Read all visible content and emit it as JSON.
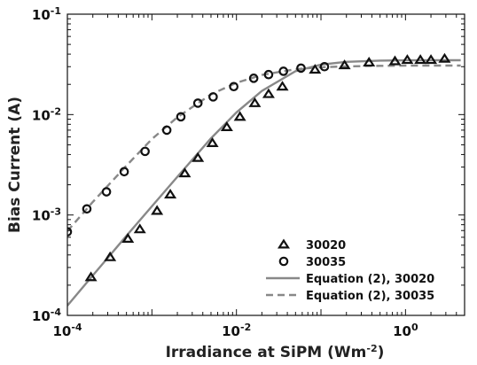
{
  "chart_data": {
    "type": "scatter",
    "title": "",
    "xlabel": "Irradiance at SiPM (Wm",
    "xlabel_superscript": "-2",
    "xlabel_close": ")",
    "ylabel": "Bias Current (A)",
    "x_scale": "log",
    "y_scale": "log",
    "xlim": [
      0.0001,
      5
    ],
    "ylim": [
      0.0001,
      0.1
    ],
    "x_ticks": [
      {
        "value": 0.0001,
        "base": "10",
        "exp": "-4"
      },
      {
        "value": 0.01,
        "base": "10",
        "exp": "-2"
      },
      {
        "value": 1,
        "base": "10",
        "exp": "0"
      }
    ],
    "y_ticks": [
      {
        "value": 0.0001,
        "base": "10",
        "exp": "-4"
      },
      {
        "value": 0.001,
        "base": "10",
        "exp": "-3"
      },
      {
        "value": 0.01,
        "base": "10",
        "exp": "-2"
      },
      {
        "value": 0.1,
        "base": "10",
        "exp": "-1"
      }
    ],
    "grid": false,
    "legend_position": "bottom-right",
    "colors": {
      "markers": "#111111",
      "fit_line": "#888888",
      "axes": "#111111"
    },
    "series": [
      {
        "name": "30020",
        "kind": "markers",
        "marker": "triangle",
        "x": [
          0.00019,
          0.00032,
          0.00052,
          0.00072,
          0.00115,
          0.00165,
          0.00245,
          0.0035,
          0.0052,
          0.0077,
          0.011,
          0.0165,
          0.024,
          0.035,
          0.085,
          0.19,
          0.37,
          0.75,
          1.05,
          1.5,
          2.0,
          2.9
        ],
        "y": [
          0.00024,
          0.00038,
          0.00058,
          0.00072,
          0.0011,
          0.0016,
          0.0026,
          0.0037,
          0.0052,
          0.0075,
          0.0095,
          0.013,
          0.016,
          0.019,
          0.028,
          0.031,
          0.033,
          0.034,
          0.035,
          0.035,
          0.035,
          0.036
        ]
      },
      {
        "name": "30035",
        "kind": "markers",
        "marker": "circle",
        "x": [
          0.0001,
          0.00017,
          0.00029,
          0.00047,
          0.00083,
          0.0015,
          0.0022,
          0.0035,
          0.0053,
          0.0093,
          0.016,
          0.024,
          0.036,
          0.058,
          0.11
        ],
        "y": [
          0.00068,
          0.00115,
          0.0017,
          0.0027,
          0.0043,
          0.007,
          0.0095,
          0.013,
          0.015,
          0.019,
          0.023,
          0.025,
          0.027,
          0.029,
          0.03
        ]
      },
      {
        "name": "Equation (2), 30020",
        "kind": "line",
        "style": "solid",
        "x": [
          0.0001,
          0.0002,
          0.0005,
          0.001,
          0.002,
          0.005,
          0.01,
          0.02,
          0.05,
          0.1,
          0.2,
          0.5,
          1,
          2,
          4.5
        ],
        "y": [
          0.000125,
          0.00025,
          0.00062,
          0.00122,
          0.0024,
          0.0058,
          0.0105,
          0.0172,
          0.027,
          0.0315,
          0.0335,
          0.0345,
          0.0347,
          0.0348,
          0.0348
        ]
      },
      {
        "name": "Equation (2), 30035",
        "kind": "line",
        "style": "dashed",
        "x": [
          0.0001,
          0.0002,
          0.0005,
          0.001,
          0.002,
          0.005,
          0.01,
          0.02,
          0.05,
          0.1,
          0.2,
          0.5,
          1,
          2,
          4.5
        ],
        "y": [
          0.00069,
          0.00135,
          0.0031,
          0.0057,
          0.0094,
          0.0159,
          0.0207,
          0.0248,
          0.0283,
          0.0296,
          0.0302,
          0.0306,
          0.0307,
          0.0308,
          0.0308
        ]
      }
    ]
  }
}
